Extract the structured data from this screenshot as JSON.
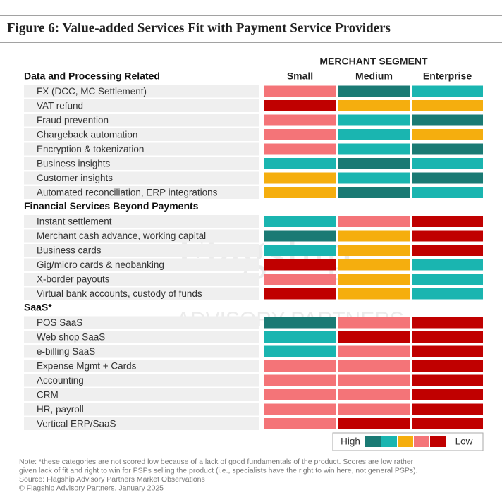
{
  "chart_data": {
    "type": "heatmap",
    "title": "Figure 6: Value-added Services Fit with Payment Service Providers",
    "column_group": "MERCHANT SEGMENT",
    "columns": [
      "Small",
      "Medium",
      "Enterprise"
    ],
    "colors": [
      "#1a7a74",
      "#1ab5b0",
      "#f5ae0e",
      "#f47478",
      "#c00000"
    ],
    "legend": {
      "high": "High",
      "low": "Low"
    },
    "watermark": [
      "Flagship",
      "ADVISORY PARTNERS"
    ],
    "sections": [
      {
        "name": "Data and Processing Related",
        "rows": [
          {
            "label": "FX (DCC, MC Settlement)",
            "values": [
              3,
              0,
              1
            ]
          },
          {
            "label": "VAT refund",
            "values": [
              4,
              2,
              2
            ]
          },
          {
            "label": "Fraud prevention",
            "values": [
              3,
              1,
              0
            ]
          },
          {
            "label": "Chargeback automation",
            "values": [
              3,
              1,
              2
            ]
          },
          {
            "label": "Encryption & tokenization",
            "values": [
              3,
              1,
              0
            ]
          },
          {
            "label": "Business insights",
            "values": [
              1,
              0,
              1
            ]
          },
          {
            "label": "Customer insights",
            "values": [
              2,
              1,
              0
            ]
          },
          {
            "label": "Automated reconciliation, ERP integrations",
            "values": [
              2,
              0,
              1
            ]
          }
        ]
      },
      {
        "name": "Financial Services Beyond Payments",
        "rows": [
          {
            "label": "Instant settlement",
            "values": [
              1,
              3,
              4
            ]
          },
          {
            "label": "Merchant cash advance, working capital",
            "values": [
              0,
              2,
              4
            ]
          },
          {
            "label": "Business cards",
            "values": [
              1,
              2,
              4
            ]
          },
          {
            "label": "Gig/micro cards & neobanking",
            "values": [
              4,
              2,
              1
            ]
          },
          {
            "label": "X-border payouts",
            "values": [
              3,
              2,
              1
            ]
          },
          {
            "label": "Virtual bank accounts, custody of funds",
            "values": [
              4,
              2,
              1
            ]
          }
        ]
      },
      {
        "name": "SaaS*",
        "rows": [
          {
            "label": "POS SaaS",
            "values": [
              0,
              3,
              4
            ]
          },
          {
            "label": "Web shop SaaS",
            "values": [
              1,
              4,
              4
            ]
          },
          {
            "label": "e-billing SaaS",
            "values": [
              1,
              3,
              4
            ]
          },
          {
            "label": "Expense Mgmt + Cards",
            "values": [
              3,
              3,
              4
            ]
          },
          {
            "label": "Accounting",
            "values": [
              3,
              3,
              4
            ]
          },
          {
            "label": "CRM",
            "values": [
              3,
              3,
              4
            ]
          },
          {
            "label": "HR, payroll",
            "values": [
              3,
              3,
              4
            ]
          },
          {
            "label": "Vertical ERP/SaaS",
            "values": [
              3,
              4,
              4
            ]
          }
        ]
      }
    ],
    "notes": [
      "Note: *these categories are not scored low because of a lack of good fundamentals of the product.  Scores are low rather",
      "given lack of fit and right to win for PSPs selling the product (i.e., specialists have the right to win here, not general PSPs).",
      "Source: Flagship Advisory Partners Market Observations",
      "© Flagship Advisory Partners, January 2025"
    ]
  }
}
